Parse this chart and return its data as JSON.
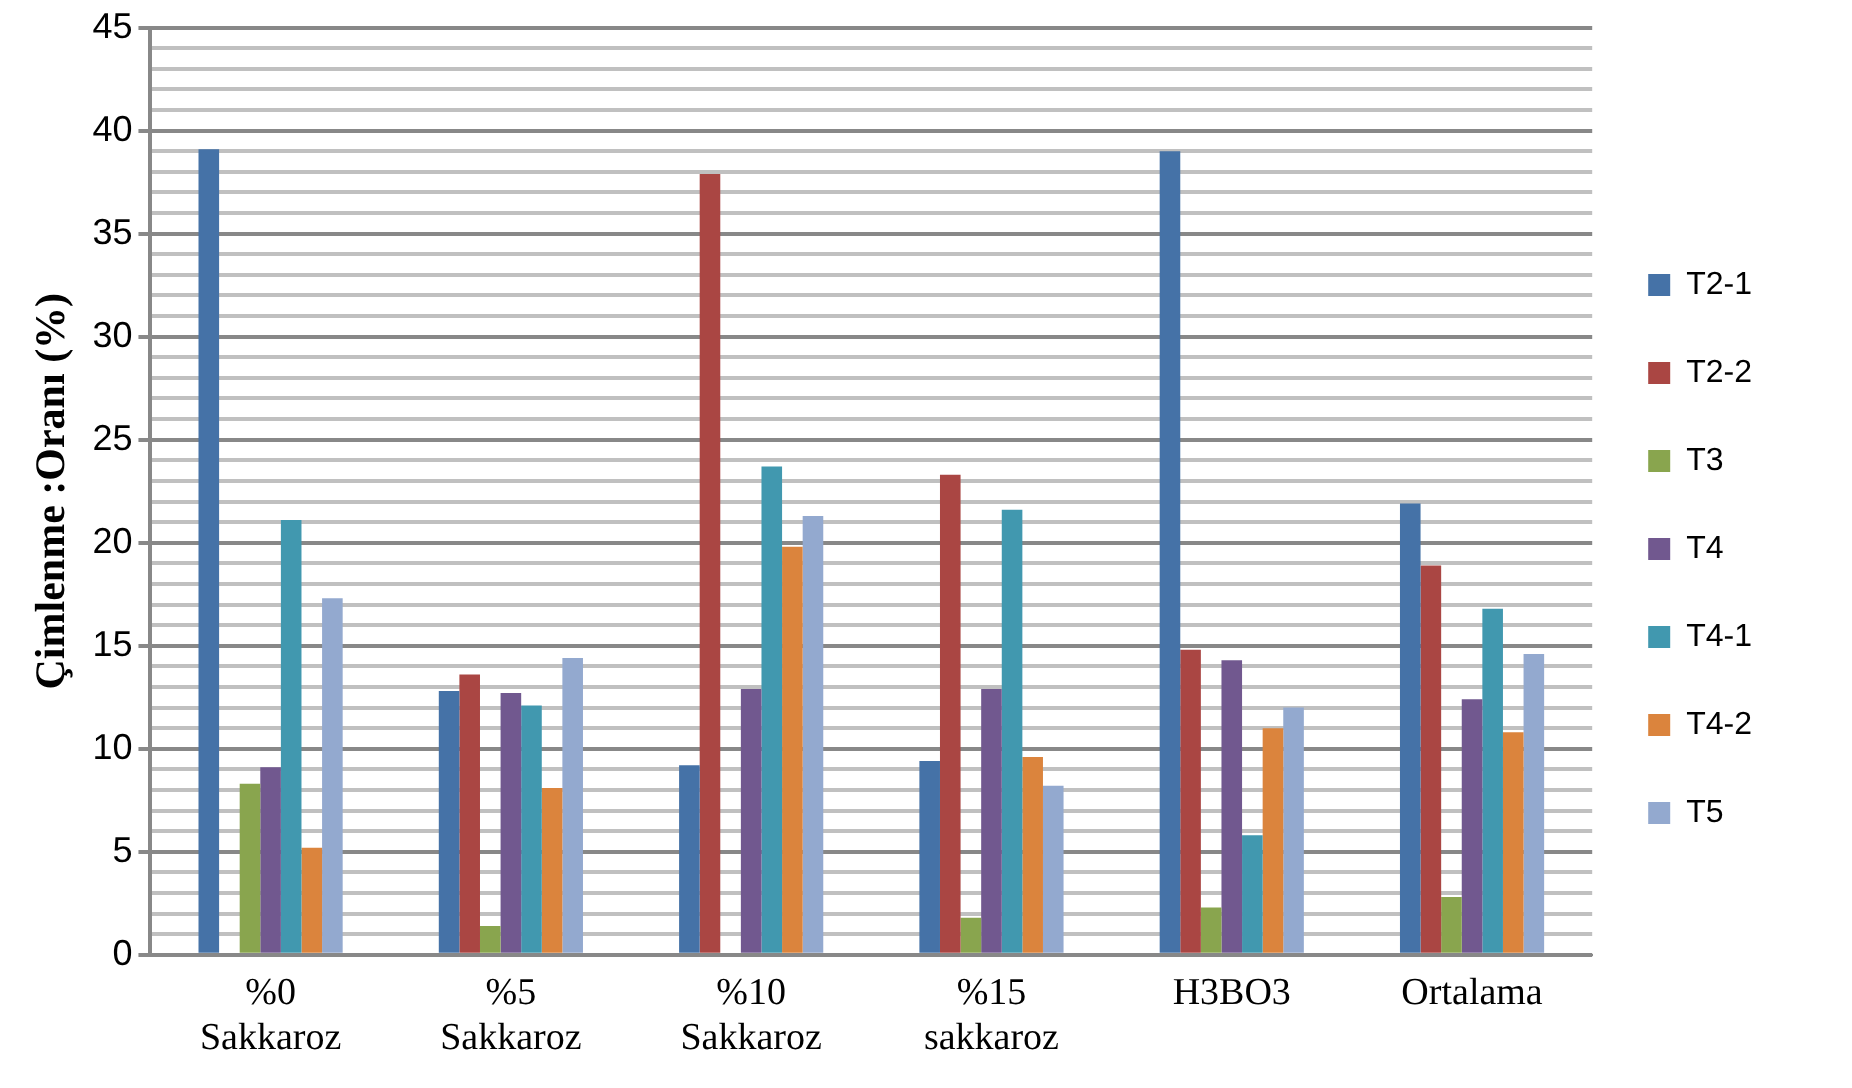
{
  "chart_data": {
    "type": "bar",
    "ylabel": "Çimlenme :Oranı (%)",
    "categories": [
      "%0 Sakkaroz",
      "%5 Sakkaroz",
      "%10 Sakkaroz",
      "%15 sakkaroz",
      "H3BO3",
      "Ortalama"
    ],
    "series": [
      {
        "name": "T2-1",
        "color": "#4572a7",
        "values": [
          39.1,
          12.8,
          9.2,
          9.4,
          39.0,
          21.9
        ]
      },
      {
        "name": "T2-2",
        "color": "#aa4643",
        "values": [
          0,
          13.6,
          37.9,
          23.3,
          14.8,
          18.9
        ]
      },
      {
        "name": "T3",
        "color": "#89a54e",
        "values": [
          8.3,
          1.4,
          0,
          1.8,
          2.3,
          2.8
        ]
      },
      {
        "name": "T4",
        "color": "#71588f",
        "values": [
          9.1,
          12.7,
          12.9,
          12.9,
          14.3,
          12.4
        ]
      },
      {
        "name": "T4-1",
        "color": "#4198af",
        "values": [
          21.1,
          12.1,
          23.7,
          21.6,
          5.8,
          16.8
        ]
      },
      {
        "name": "T4-2",
        "color": "#db843d",
        "values": [
          5.2,
          8.1,
          19.8,
          9.6,
          11.0,
          10.8
        ]
      },
      {
        "name": "T5",
        "color": "#93a9cf",
        "values": [
          17.3,
          14.4,
          21.3,
          8.2,
          12.0,
          14.6
        ]
      }
    ],
    "ylim": [
      0,
      45
    ],
    "yticks": [
      0,
      {
        "value": 1,
        "label": null
      },
      {
        "value": 2,
        "label": null
      },
      {
        "value": 3,
        "label": null
      },
      {
        "value": 4,
        "label": null
      },
      5,
      {
        "value": 6,
        "label": null
      },
      {
        "value": 7,
        "label": null
      },
      {
        "value": 8,
        "label": null
      },
      {
        "value": 9,
        "label": null
      },
      10,
      {
        "value": 11,
        "label": null
      },
      {
        "value": 12,
        "label": null
      },
      {
        "value": 13,
        "label": null
      },
      {
        "value": 14,
        "label": null
      },
      15,
      {
        "value": 16,
        "label": null
      },
      {
        "value": 17,
        "label": null
      },
      {
        "value": 18,
        "label": null
      },
      {
        "value": 19,
        "label": null
      },
      20,
      {
        "value": 21,
        "label": null
      },
      {
        "value": 22,
        "label": null
      },
      {
        "value": 23,
        "label": null
      },
      {
        "value": 24,
        "label": null
      },
      25,
      {
        "value": 26,
        "label": null
      },
      {
        "value": 27,
        "label": null
      },
      {
        "value": 28,
        "label": null
      },
      {
        "value": 29,
        "label": null
      },
      30,
      {
        "value": 31,
        "label": null
      },
      {
        "value": 32,
        "label": null
      },
      {
        "value": 33,
        "label": null
      },
      {
        "value": 34,
        "label": null
      },
      35,
      {
        "value": 36,
        "label": null
      },
      {
        "value": 37,
        "label": null
      },
      {
        "value": 38,
        "label": null
      },
      {
        "value": 39,
        "label": null
      },
      40,
      {
        "value": 41,
        "label": null
      },
      {
        "value": 42,
        "label": null
      },
      {
        "value": 43,
        "label": null
      },
      {
        "value": 44,
        "label": null
      },
      45
    ],
    "grid": "y",
    "legend": "right"
  }
}
